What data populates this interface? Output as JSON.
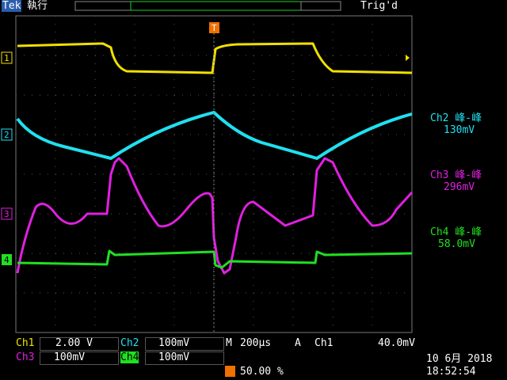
{
  "header": {
    "brand": "Tek",
    "status": "執行",
    "trigger_status": "Trig'd"
  },
  "markers": {
    "ch1": "1",
    "ch2": "2",
    "ch3": "3",
    "ch4": "4",
    "trigger": "T"
  },
  "measurements": [
    {
      "label": "Ch2 峰-峰",
      "value": "130mV"
    },
    {
      "label": "Ch3 峰-峰",
      "value": "296mV"
    },
    {
      "label": "Ch4 峰-峰",
      "value": "58.0mV"
    }
  ],
  "footer": {
    "ch1": {
      "label": "Ch1",
      "scale": "2.00 V"
    },
    "ch2": {
      "label": "Ch2",
      "scale": "100mV"
    },
    "ch3": {
      "label": "Ch3",
      "scale": "100mV"
    },
    "ch4": {
      "label": "Ch4",
      "scale": "100mV"
    },
    "timebase": {
      "label": "M",
      "value": "200µs"
    },
    "trigger": {
      "label": "A",
      "source": "Ch1",
      "level": "40.0mV"
    },
    "trigger_position": "50.00 %",
    "date": "10 6月 2018",
    "time": "18:52:54"
  }
}
